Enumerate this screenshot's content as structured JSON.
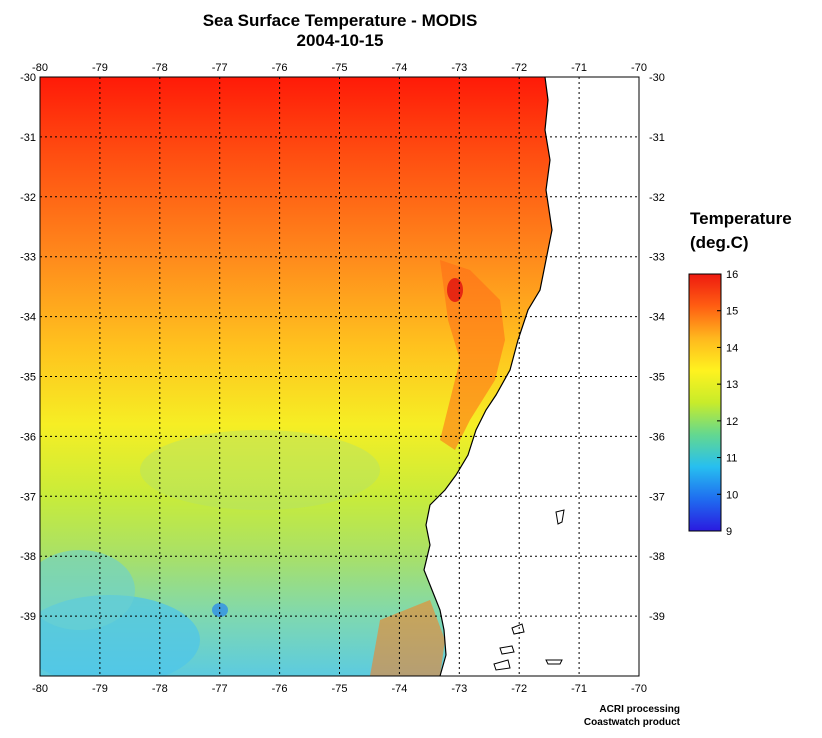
{
  "title": {
    "line1": "Sea Surface Temperature - MODIS",
    "line2": "2004-10-15"
  },
  "legend": {
    "title_line1": "Temperature",
    "title_line2": "(deg.C)",
    "min": 9,
    "max": 16,
    "ticks": [
      "16",
      "15",
      "14",
      "13",
      "12",
      "11",
      "10",
      "9"
    ],
    "colors": [
      "#2a1ae0",
      "#1f6df0",
      "#27bff0",
      "#63d890",
      "#c8ec2a",
      "#fff21f",
      "#ffb81e",
      "#ff5e12",
      "#ee1a10"
    ]
  },
  "axes": {
    "lon_ticks": [
      "-80",
      "-79",
      "-78",
      "-77",
      "-76",
      "-75",
      "-74",
      "-73",
      "-72",
      "-71",
      "-70"
    ],
    "lat_ticks": [
      "-30",
      "-31",
      "-32",
      "-33",
      "-34",
      "-35",
      "-36",
      "-37",
      "-38",
      "-39"
    ],
    "lon_range": [
      -80,
      -70
    ],
    "lat_range": [
      -40,
      -30
    ],
    "grid": true
  },
  "credits": {
    "line1": "ACRI processing",
    "line2": "Coastwatch product"
  }
}
